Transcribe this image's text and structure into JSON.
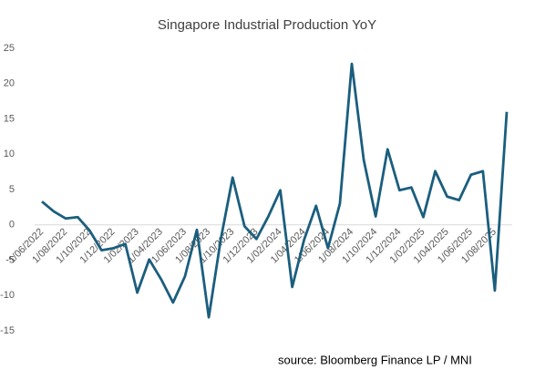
{
  "chart_data": {
    "type": "line",
    "title": "Singapore Industrial Production YoY",
    "source": "source:  Bloomberg Finance LP  /  MNI",
    "categories": [
      "1/06/2022",
      null,
      "1/08/2022",
      null,
      "1/10/2022",
      null,
      "1/12/2022",
      null,
      "1/02/2023",
      null,
      "1/04/2023",
      null,
      "1/06/2023",
      null,
      "1/08/2023",
      null,
      "1/10/2023",
      null,
      "1/12/2023",
      null,
      "1/02/2024",
      null,
      "1/04/2024",
      null,
      "1/06/2024",
      null,
      "1/08/2024",
      null,
      "1/10/2024",
      null,
      "1/12/2024",
      null,
      "1/02/2025",
      null,
      "1/04/2025",
      null,
      "1/06/2025",
      null,
      "1/08/2025",
      null
    ],
    "series": [
      {
        "name": "Singapore Industrial Production YoY",
        "color": "#1b5e7e",
        "values": [
          3.3,
          1.9,
          0.9,
          1.1,
          -0.8,
          -3.6,
          -3.3,
          -2.7,
          -9.6,
          -4.9,
          -7.7,
          -11.0,
          -7.3,
          -0.7,
          -13.1,
          -2.1,
          6.7,
          -0.2,
          -2.0,
          1.2,
          4.9,
          -8.8,
          -2.1,
          2.7,
          -3.3,
          3.0,
          22.8,
          9.2,
          1.2,
          10.7,
          4.9,
          5.3,
          1.1,
          7.6,
          4.0,
          3.5,
          7.1,
          7.6,
          -9.3,
          16.0
        ]
      }
    ],
    "ylim": [
      -15,
      25
    ],
    "yticks": [
      -15,
      -10,
      -5,
      0,
      5,
      10,
      15,
      20,
      25
    ],
    "grid": false
  }
}
